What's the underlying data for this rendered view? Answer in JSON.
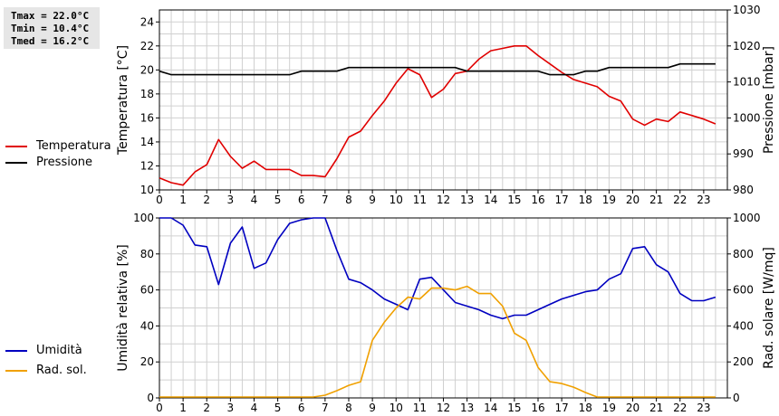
{
  "stats": {
    "tmax": "Tmax = 22.0°C",
    "tmin": "Tmin = 10.4°C",
    "tmed": "Tmed = 16.2°C"
  },
  "legend_top": [
    {
      "label": "Temperatura",
      "color": "#e00000"
    },
    {
      "label": "Pressione",
      "color": "#000000"
    }
  ],
  "legend_bottom": [
    {
      "label": "Umidità",
      "color": "#0000c0"
    },
    {
      "label": "Rad. sol.",
      "color": "#f0a000"
    }
  ],
  "chart_data": [
    {
      "type": "line",
      "xlabel": "",
      "x_ticks": [
        0,
        1,
        2,
        3,
        4,
        5,
        6,
        7,
        8,
        9,
        10,
        11,
        12,
        13,
        14,
        15,
        16,
        17,
        18,
        19,
        20,
        21,
        22,
        23
      ],
      "xlim": [
        0,
        24
      ],
      "grid": true,
      "y_left": {
        "label": "Temperatura [°C]",
        "lim": [
          10,
          25
        ],
        "ticks": [
          10,
          12,
          14,
          16,
          18,
          20,
          22,
          24
        ]
      },
      "y_right": {
        "label": "Pressione [mbar]",
        "lim": [
          980,
          1030
        ],
        "ticks": [
          980,
          990,
          1000,
          1010,
          1020,
          1030
        ]
      },
      "series": [
        {
          "name": "Temperatura",
          "axis": "left",
          "color": "#e00000",
          "x": [
            0,
            0.5,
            1,
            1.5,
            2,
            2.5,
            3,
            3.5,
            4,
            4.5,
            5,
            5.5,
            6,
            6.5,
            7,
            7.5,
            8,
            8.5,
            9,
            9.5,
            10,
            10.5,
            11,
            11.5,
            12,
            12.5,
            13,
            13.5,
            14,
            14.5,
            15,
            15.5,
            16,
            16.5,
            17,
            17.5,
            18,
            18.5,
            19,
            19.5,
            20,
            20.5,
            21,
            21.5,
            22,
            22.5,
            23,
            23.5
          ],
          "y": [
            11.0,
            10.6,
            10.4,
            11.5,
            12.1,
            14.2,
            12.8,
            11.8,
            12.4,
            11.7,
            11.7,
            11.7,
            11.2,
            11.2,
            11.1,
            12.6,
            14.4,
            14.9,
            16.2,
            17.4,
            18.9,
            20.1,
            19.6,
            17.7,
            18.4,
            19.7,
            19.9,
            20.9,
            21.6,
            21.8,
            22.0,
            22.0,
            21.2,
            20.5,
            19.8,
            19.2,
            18.9,
            18.6,
            17.8,
            17.4,
            15.9,
            15.4,
            15.9,
            15.7,
            16.5,
            16.2,
            15.9,
            15.5
          ]
        },
        {
          "name": "Pressione",
          "axis": "right",
          "color": "#000000",
          "x": [
            0,
            0.5,
            1,
            1.5,
            2,
            2.5,
            3,
            3.5,
            4,
            4.5,
            5,
            5.5,
            6,
            6.5,
            7,
            7.5,
            8,
            8.5,
            9,
            9.5,
            10,
            10.5,
            11,
            11.5,
            12,
            12.5,
            13,
            13.5,
            14,
            14.5,
            15,
            15.5,
            16,
            16.5,
            17,
            17.5,
            18,
            18.5,
            19,
            19.5,
            20,
            20.5,
            21,
            21.5,
            22,
            22.5,
            23,
            23.5
          ],
          "y": [
            1013,
            1012,
            1012,
            1012,
            1012,
            1012,
            1012,
            1012,
            1012,
            1012,
            1012,
            1012,
            1013,
            1013,
            1013,
            1013,
            1014,
            1014,
            1014,
            1014,
            1014,
            1014,
            1014,
            1014,
            1014,
            1014,
            1013,
            1013,
            1013,
            1013,
            1013,
            1013,
            1013,
            1012,
            1012,
            1012,
            1013,
            1013,
            1014,
            1014,
            1014,
            1014,
            1014,
            1014,
            1015,
            1015,
            1015,
            1015
          ]
        }
      ]
    },
    {
      "type": "line",
      "xlabel": "",
      "x_ticks": [
        0,
        1,
        2,
        3,
        4,
        5,
        6,
        7,
        8,
        9,
        10,
        11,
        12,
        13,
        14,
        15,
        16,
        17,
        18,
        19,
        20,
        21,
        22,
        23
      ],
      "xlim": [
        0,
        24
      ],
      "grid": true,
      "y_left": {
        "label": "Umidità relativa [%]",
        "lim": [
          0,
          100
        ],
        "ticks": [
          0,
          20,
          40,
          60,
          80,
          100
        ]
      },
      "y_right": {
        "label": "Rad. solare [W/mq]",
        "lim": [
          0,
          1000
        ],
        "ticks": [
          0,
          200,
          400,
          600,
          800,
          1000
        ]
      },
      "series": [
        {
          "name": "Umidità",
          "axis": "left",
          "color": "#0000c0",
          "x": [
            0,
            0.5,
            1,
            1.5,
            2,
            2.5,
            3,
            3.5,
            4,
            4.5,
            5,
            5.5,
            6,
            6.5,
            7,
            7.5,
            8,
            8.5,
            9,
            9.5,
            10,
            10.5,
            11,
            11.5,
            12,
            12.5,
            13,
            13.5,
            14,
            14.5,
            15,
            15.5,
            16,
            16.5,
            17,
            17.5,
            18,
            18.5,
            19,
            19.5,
            20,
            20.5,
            21,
            21.5,
            22,
            22.5,
            23,
            23.5
          ],
          "y": [
            100,
            100,
            96,
            85,
            84,
            63,
            86,
            95,
            72,
            75,
            88,
            97,
            99,
            100,
            100,
            82,
            66,
            64,
            60,
            55,
            52,
            49,
            66,
            67,
            60,
            53,
            51,
            49,
            46,
            44,
            46,
            46,
            49,
            52,
            55,
            57,
            59,
            60,
            66,
            69,
            83,
            84,
            74,
            70,
            58,
            54,
            54,
            56
          ]
        },
        {
          "name": "Rad. sol.",
          "axis": "right",
          "color": "#f0a000",
          "x": [
            0,
            0.5,
            1,
            1.5,
            2,
            2.5,
            3,
            3.5,
            4,
            4.5,
            5,
            5.5,
            6,
            6.5,
            7,
            7.5,
            8,
            8.5,
            9,
            9.5,
            10,
            10.5,
            11,
            11.5,
            12,
            12.5,
            13,
            13.5,
            14,
            14.5,
            15,
            15.5,
            16,
            16.5,
            17,
            17.5,
            18,
            18.5,
            19,
            19.5,
            20,
            20.5,
            21,
            21.5,
            22,
            22.5,
            23,
            23.5
          ],
          "y": [
            5,
            5,
            5,
            5,
            5,
            5,
            5,
            5,
            5,
            5,
            5,
            5,
            5,
            5,
            15,
            40,
            70,
            90,
            320,
            420,
            500,
            560,
            550,
            610,
            610,
            600,
            620,
            580,
            580,
            510,
            360,
            320,
            170,
            90,
            80,
            60,
            30,
            5,
            5,
            5,
            5,
            5,
            5,
            5,
            5,
            5,
            5,
            5
          ]
        }
      ]
    }
  ]
}
